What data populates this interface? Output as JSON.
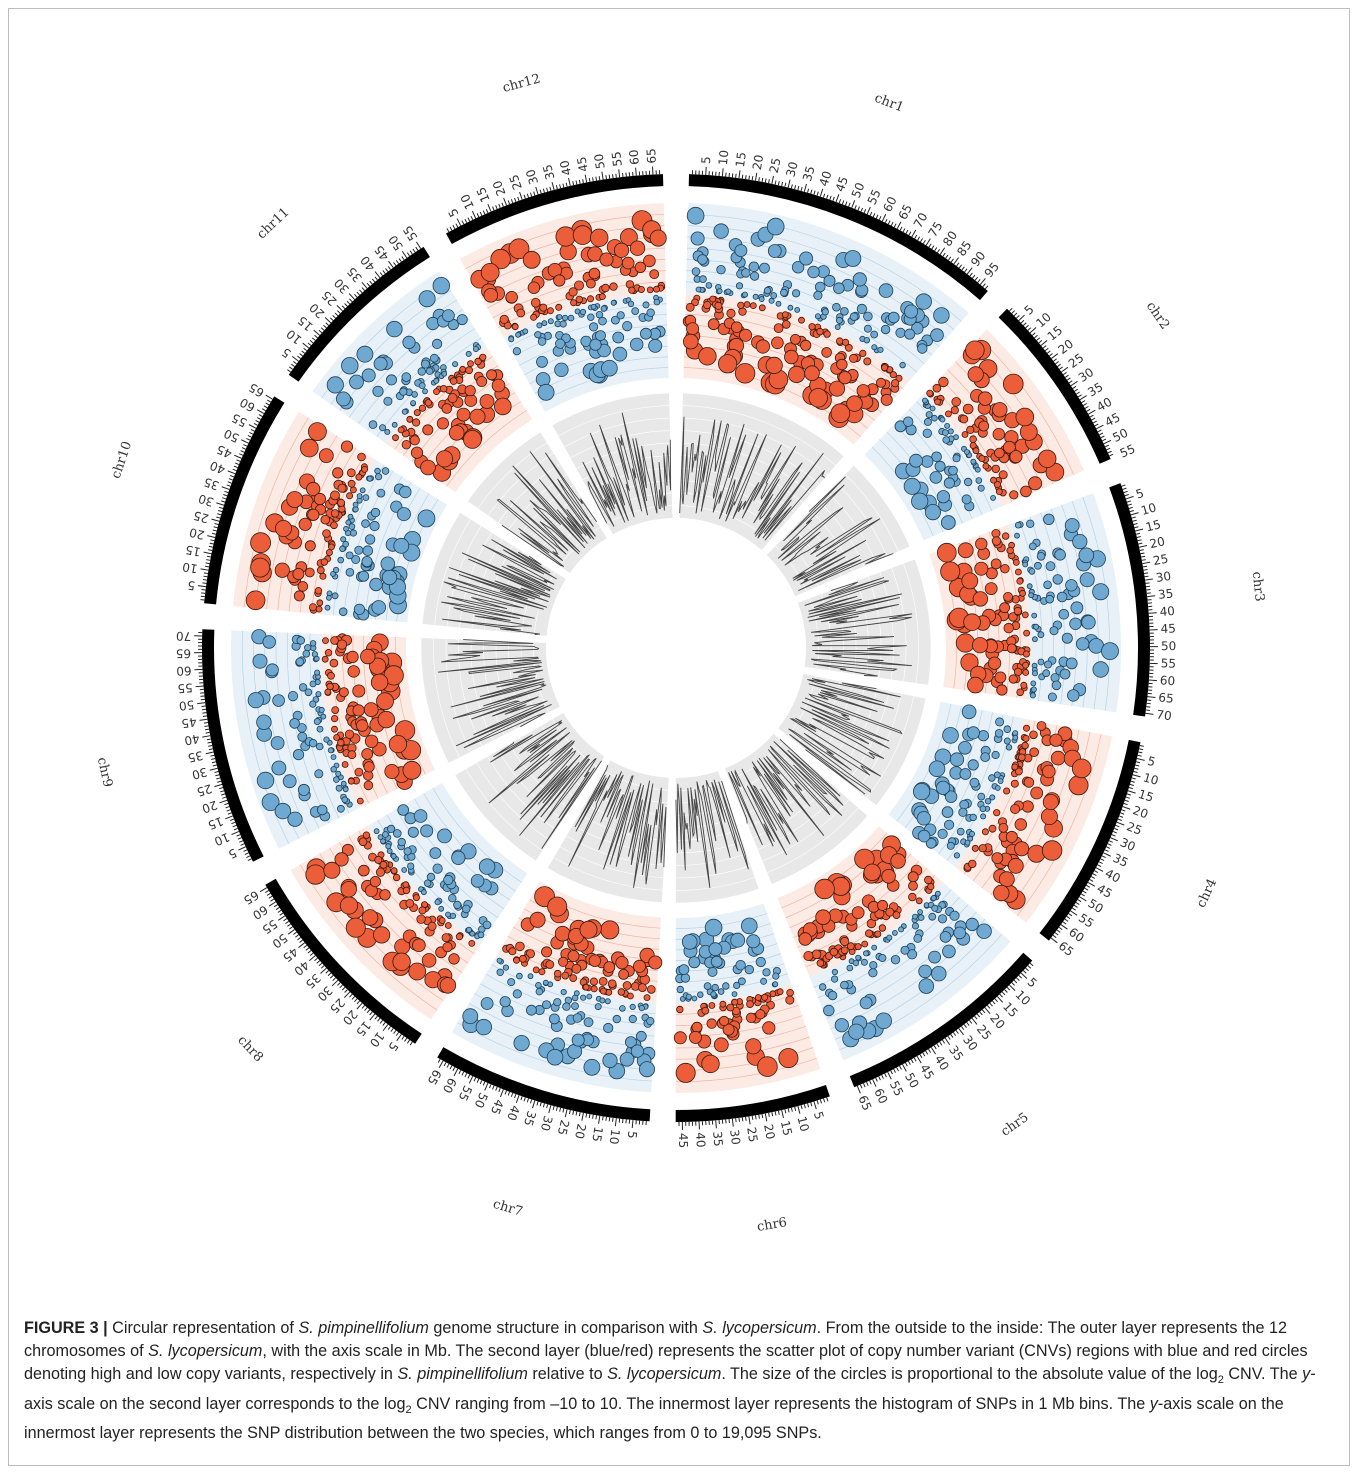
{
  "chart_data": {
    "type": "scatter",
    "layout": "circular",
    "layers": [
      "chromosome ideogram (Mb)",
      "CNV scatter (log2 CNV, -10 to 10)",
      "SNP histogram (1 Mb bins, 0 to 19,095 SNPs)"
    ],
    "ylim_cnv": [
      -10,
      10
    ],
    "ylim_snp": [
      0,
      19095
    ],
    "colors": {
      "high_copy": "#6fa8d0",
      "low_copy": "#ec5d3a",
      "cnv_high_band": "#e8f1f8",
      "cnv_low_band": "#fcebe4",
      "histogram_band": "#e8e8e8",
      "ideogram": "#000000"
    },
    "chromosomes": [
      {
        "name": "chr1",
        "length": 98,
        "ticks": [
          "5",
          "10",
          "15",
          "20",
          "25",
          "30",
          "35",
          "40",
          "45",
          "50",
          "55",
          "60",
          "65",
          "70",
          "75",
          "80",
          "85",
          "90",
          "95"
        ]
      },
      {
        "name": "chr2",
        "length": 55,
        "ticks": [
          "5",
          "10",
          "15",
          "20",
          "25",
          "30",
          "35",
          "40",
          "45",
          "50",
          "55"
        ]
      },
      {
        "name": "chr3",
        "length": 71,
        "ticks": [
          "5",
          "10",
          "15",
          "20",
          "25",
          "30",
          "35",
          "40",
          "45",
          "50",
          "55",
          "60",
          "65",
          "70"
        ]
      },
      {
        "name": "chr4",
        "length": 66,
        "ticks": [
          "5",
          "10",
          "15",
          "20",
          "25",
          "30",
          "35",
          "40",
          "45",
          "50",
          "55",
          "60",
          "65"
        ]
      },
      {
        "name": "chr5",
        "length": 66,
        "ticks": [
          "5",
          "10",
          "15",
          "20",
          "25",
          "30",
          "35",
          "40",
          "45",
          "50",
          "55",
          "60",
          "65"
        ]
      },
      {
        "name": "chr6",
        "length": 47,
        "ticks": [
          "5",
          "10",
          "15",
          "20",
          "25",
          "30",
          "35",
          "40",
          "45"
        ]
      },
      {
        "name": "chr7",
        "length": 67,
        "ticks": [
          "5",
          "10",
          "15",
          "20",
          "25",
          "30",
          "35",
          "40",
          "45",
          "50",
          "55",
          "60",
          "65"
        ]
      },
      {
        "name": "chr8",
        "length": 66,
        "ticks": [
          "5",
          "10",
          "15",
          "20",
          "25",
          "30",
          "35",
          "40",
          "45",
          "50",
          "55",
          "60",
          "65"
        ]
      },
      {
        "name": "chr9",
        "length": 72,
        "ticks": [
          "5",
          "10",
          "15",
          "20",
          "25",
          "30",
          "35",
          "40",
          "45",
          "50",
          "55",
          "60",
          "65",
          "70"
        ]
      },
      {
        "name": "chr10",
        "length": 66,
        "ticks": [
          "5",
          "10",
          "15",
          "20",
          "25",
          "30",
          "35",
          "40",
          "45",
          "50",
          "55",
          "60",
          "65"
        ]
      },
      {
        "name": "chr11",
        "length": 56,
        "ticks": [
          "5",
          "10",
          "15",
          "20",
          "25",
          "30",
          "35",
          "40",
          "45",
          "50",
          "55"
        ]
      },
      {
        "name": "chr12",
        "length": 68,
        "ticks": [
          "5",
          "10",
          "15",
          "20",
          "25",
          "30",
          "35",
          "40",
          "45",
          "50",
          "55",
          "60",
          "65"
        ]
      }
    ]
  },
  "caption": {
    "label": "FIGURE 3 |",
    "segments": [
      {
        "t": " Circular representation of ",
        "i": false
      },
      {
        "t": "S. pimpinellifolium",
        "i": true
      },
      {
        "t": " genome structure in comparison with ",
        "i": false
      },
      {
        "t": "S. lycopersicum",
        "i": true
      },
      {
        "t": ". From the outside to the inside: The outer layer represents the 12 chromosomes of ",
        "i": false
      },
      {
        "t": "S. lycopersicum",
        "i": true
      },
      {
        "t": ", with the axis scale in Mb. The second layer (blue/red) represents the scatter plot of copy number variant (CNVs) regions with blue and red circles denoting high and low copy variants, respectively in ",
        "i": false
      },
      {
        "t": "S. pimpinellifolium",
        "i": true
      },
      {
        "t": " relative to ",
        "i": false
      },
      {
        "t": "S. lycopersicum",
        "i": true
      },
      {
        "t": ". The size of the circles is proportional to the absolute value of the log",
        "i": false
      },
      {
        "t": "2",
        "sub": true
      },
      {
        "t": " CNV. The ",
        "i": false
      },
      {
        "t": "y",
        "i": true
      },
      {
        "t": "-axis scale on the second layer corresponds to the log",
        "i": false
      },
      {
        "t": "2",
        "sub": true
      },
      {
        "t": " CNV ranging from –10 to 10. The innermost layer represents the histogram of SNPs in 1 Mb bins. The ",
        "i": false
      },
      {
        "t": "y",
        "i": true
      },
      {
        "t": "-axis scale on the innermost layer represents the SNP distribution between the two species, which ranges from 0 to 19,095 SNPs.",
        "i": false
      }
    ]
  }
}
